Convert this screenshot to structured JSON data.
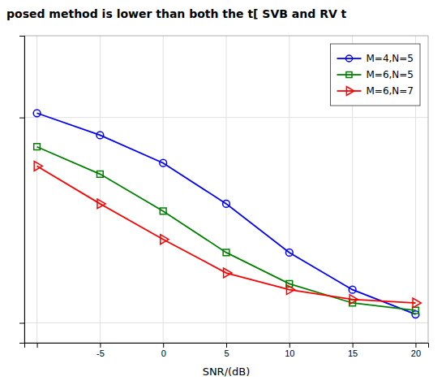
{
  "chart_data": {
    "type": "line",
    "title": "posed method is lower than both the t[ SVB and RV t",
    "xlabel": "SNR/(dB)",
    "x": [
      -10,
      -5,
      0,
      5,
      10,
      15,
      20
    ],
    "series": [
      {
        "name": "M=4,N=5",
        "color": "blue",
        "marker": "circle",
        "values": [
          1.05,
          0.82,
          0.6,
          0.38,
          0.22,
          0.145,
          0.11
        ]
      },
      {
        "name": "M=6,N=5",
        "color": "green",
        "marker": "square",
        "values": [
          0.72,
          0.53,
          0.35,
          0.22,
          0.155,
          0.125,
          0.115
        ]
      },
      {
        "name": "M=6,N=7",
        "color": "red",
        "marker": "triangle-right",
        "values": [
          0.58,
          0.38,
          0.255,
          0.175,
          0.145,
          0.13,
          0.125
        ]
      }
    ],
    "xlim": [
      -11,
      21
    ],
    "xticks": [
      {
        "value": -10,
        "label": null
      },
      -5,
      0,
      5,
      10,
      15,
      20
    ],
    "ylim": [
      0.08,
      2.5
    ],
    "yticks": [
      0.1,
      1
    ],
    "log": "y",
    "grid": true,
    "legend": "upper right",
    "tick_labels": "x"
  }
}
